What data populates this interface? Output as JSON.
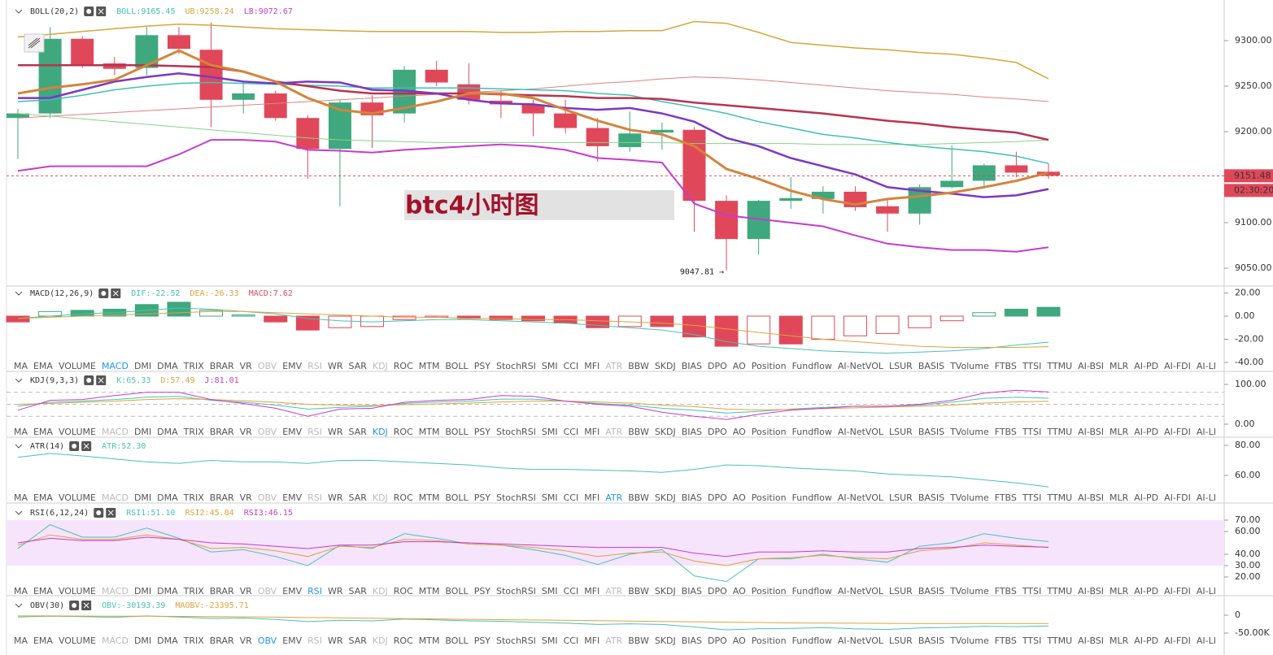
{
  "chart_data": [
    {
      "type": "candlestick",
      "title": "BOLL(20,2)",
      "open": [
        9215,
        9220,
        9302,
        9275,
        9270,
        9306,
        9290,
        9235,
        9242,
        9215,
        9181,
        9232,
        9220,
        9268,
        9252,
        9234,
        9230,
        9220,
        9204,
        9183,
        9199,
        9202,
        9124,
        9082,
        9124,
        9126,
        9134,
        9118,
        9110,
        9139,
        9146,
        9163,
        9156
      ],
      "high": [
        9225,
        9315,
        9305,
        9282,
        9315,
        9315,
        9320,
        9255,
        9245,
        9218,
        9235,
        9240,
        9272,
        9278,
        9275,
        9245,
        9235,
        9235,
        9215,
        9222,
        9210,
        9205,
        9130,
        9125,
        9150,
        9140,
        9140,
        9125,
        9142,
        9185,
        9165,
        9178,
        9165
      ],
      "low": [
        9170,
        9215,
        9270,
        9262,
        9262,
        9285,
        9205,
        9220,
        9212,
        9148,
        9118,
        9182,
        9210,
        9250,
        9230,
        9215,
        9195,
        9198,
        9167,
        9178,
        9180,
        9090,
        9047.81,
        9065,
        9115,
        9110,
        9113,
        9090,
        9098,
        9138,
        9140,
        9150,
        9148
      ],
      "close": [
        9220,
        9302,
        9273,
        9269,
        9306,
        9291,
        9235,
        9242,
        9215,
        9181,
        9232,
        9218,
        9268,
        9254,
        9235,
        9230,
        9220,
        9204,
        9184,
        9198,
        9202,
        9124,
        9082,
        9124,
        9127,
        9134,
        9117,
        9110,
        9139,
        9146,
        9163,
        9155,
        9151.48
      ],
      "up_color": "#3fa87e",
      "down_color": "#e0485a",
      "series": [
        {
          "color": "#e08080",
          "width": 1,
          "values": [
            9215,
            9217,
            9219,
            9221,
            9223,
            9225,
            9227,
            9229,
            9231,
            9233,
            9235,
            9237,
            9239,
            9241,
            9243,
            9245,
            9247,
            9250,
            9253,
            9255,
            9258,
            9260,
            9259,
            9257,
            9254,
            9251,
            9248,
            9245,
            9243,
            9241,
            9238,
            9236,
            9233
          ]
        },
        {
          "color": "#86d486",
          "width": 1,
          "values": [
            9220,
            9217,
            9214,
            9211,
            9208,
            9205,
            9202,
            9199,
            9196,
            9193,
            9191,
            9190,
            9189,
            9188,
            9188,
            9188,
            9188,
            9188,
            9188,
            9188,
            9188,
            9187,
            9187,
            9187,
            9187,
            9186,
            9186,
            9186,
            9186,
            9187,
            9188,
            9189,
            9191
          ]
        },
        {
          "name": "BOLL:9165.45",
          "color": "#3cc2b0",
          "width": 1.5,
          "values": [
            9233,
            9235,
            9240,
            9246,
            9250,
            9253,
            9254,
            9253,
            9252,
            9251,
            9250,
            9248,
            9248,
            9248,
            9248,
            9247,
            9246,
            9245,
            9242,
            9240,
            9233,
            9227,
            9220,
            9211,
            9204,
            9197,
            9193,
            9188,
            9184,
            9181,
            9178,
            9173,
            9165
          ]
        },
        {
          "name": "UB:9258.24",
          "color": "#d4a838",
          "width": 1.5,
          "values": [
            9304,
            9307,
            9310,
            9313,
            9316,
            9318,
            9317,
            9315,
            9313,
            9312,
            9311,
            9310,
            9310,
            9310,
            9310,
            9309,
            9309,
            9310,
            9310,
            9311,
            9311,
            9321,
            9319,
            9309,
            9298,
            9295,
            9292,
            9290,
            9287,
            9285,
            9281,
            9276,
            9258
          ]
        },
        {
          "name": "LB:9072.67",
          "color": "#c63ad0",
          "width": 2,
          "values": [
            9157,
            9162,
            9162,
            9162,
            9162,
            9175,
            9191,
            9191,
            9189,
            9180,
            9179,
            9177,
            9180,
            9182,
            9184,
            9186,
            9184,
            9180,
            9171,
            9169,
            9166,
            9121,
            9108,
            9104,
            9100,
            9096,
            9086,
            9077,
            9073,
            9070,
            9070,
            9068,
            9073
          ]
        },
        {
          "color": "#b73450",
          "width": 2.5,
          "values": [
            9273,
            9273,
            9273,
            9273,
            9273,
            9272,
            9271,
            9266,
            9255,
            9250,
            9245,
            9242,
            9242,
            9242,
            9242,
            9241,
            9240,
            9239,
            9237,
            9237,
            9236,
            9232,
            9229,
            9226,
            9223,
            9220,
            9216,
            9212,
            9209,
            9205,
            9202,
            9199,
            9191
          ]
        },
        {
          "color": "#7b38c4",
          "width": 2.5,
          "values": [
            9237,
            9237,
            9246,
            9255,
            9260,
            9264,
            9260,
            9255,
            9253,
            9255,
            9254,
            9246,
            9245,
            9242,
            9235,
            9231,
            9230,
            9226,
            9224,
            9226,
            9220,
            9211,
            9193,
            9184,
            9171,
            9162,
            9153,
            9139,
            9135,
            9132,
            9128,
            9130,
            9137
          ]
        },
        {
          "color": "#d4843a",
          "width": 3,
          "values": [
            9242,
            9248,
            9252,
            9257,
            9273,
            9289,
            9273,
            9266,
            9255,
            9237,
            9224,
            9220,
            9226,
            9233,
            9242,
            9242,
            9237,
            9224,
            9212,
            9202,
            9197,
            9184,
            9159,
            9148,
            9135,
            9126,
            9120,
            9126,
            9129,
            9133,
            9139,
            9146,
            9155
          ]
        }
      ],
      "ylim": [
        9032.14,
        9344.64
      ],
      "yticks": [
        {
          "value": 9050,
          "label": "9050.00"
        },
        {
          "value": 9100,
          "label": "9100.00"
        },
        {
          "value": 9150,
          "label": "9150.00"
        },
        {
          "value": 9200,
          "label": "9200.00"
        },
        {
          "value": 9250,
          "label": "9250.00"
        },
        {
          "value": 9300,
          "label": "9300.00"
        }
      ],
      "last_price_label": "9151.48",
      "countdown": "02:30:20",
      "annotation": "9047.81 →",
      "watermark": "btc4小时图"
    },
    {
      "type": "line",
      "title": "MACD(12,26,9)",
      "active_tab": 3,
      "series": [
        {
          "name": "DIF:-22.52",
          "color": "#47c3b6",
          "type": "line",
          "values": [
            -2,
            0,
            2,
            3,
            5,
            7,
            6,
            4,
            2,
            -2,
            -4,
            -5,
            -4,
            -3,
            -3,
            -4,
            -5,
            -6,
            -8,
            -10,
            -12,
            -16,
            -22,
            -26,
            -28,
            -30,
            -31,
            -32,
            -31,
            -30,
            -28,
            -25,
            -22.52
          ]
        },
        {
          "name": "DEA:-26.33",
          "color": "#e0a23a",
          "type": "line",
          "values": [
            -2,
            -1,
            0,
            1,
            2,
            3,
            4,
            4,
            3,
            2,
            1,
            0,
            -1,
            -1,
            -2,
            -2,
            -3,
            -3,
            -4,
            -5,
            -6,
            -8,
            -11,
            -14,
            -17,
            -20,
            -22,
            -24,
            -26,
            -27,
            -27,
            -27,
            -26.33
          ]
        },
        {
          "name": "MACD:7.62",
          "color": "#e0485a",
          "up_color": "#3fa87e",
          "type": "bar",
          "values": [
            -5,
            4,
            5,
            6,
            10,
            12,
            5,
            1,
            -5,
            -12,
            -10,
            -9,
            -3,
            -1,
            -2,
            -3,
            -4,
            -6,
            -10,
            -9,
            -9,
            -18,
            -26,
            -24,
            -24,
            -20,
            -17,
            -15,
            -10,
            -4,
            3,
            6,
            7.62
          ]
        }
      ],
      "ylim": [
        -40.7,
        23.86
      ],
      "yticks": [
        {
          "value": -40,
          "label": "-40.00"
        },
        {
          "value": -20,
          "label": "-20.00"
        },
        {
          "value": 0,
          "label": "0.00"
        },
        {
          "value": 20,
          "label": "20.00"
        }
      ]
    },
    {
      "type": "line",
      "title": "KDJ(9,3,3)",
      "active_tab": 14,
      "hlines": [
        20,
        50,
        80
      ],
      "series": [
        {
          "name": "K:65.33",
          "color": "#47c3b6",
          "type": "line",
          "values": [
            45,
            55,
            58,
            62,
            68,
            70,
            60,
            55,
            48,
            38,
            42,
            45,
            52,
            56,
            58,
            63,
            63,
            58,
            52,
            48,
            40,
            35,
            28,
            32,
            38,
            42,
            45,
            45,
            48,
            55,
            65,
            68,
            65.33
          ]
        },
        {
          "name": "D:57.49",
          "color": "#e0a23a",
          "type": "line",
          "values": [
            50,
            52,
            55,
            58,
            62,
            64,
            62,
            59,
            55,
            50,
            48,
            47,
            49,
            51,
            53,
            56,
            58,
            58,
            56,
            53,
            48,
            44,
            38,
            36,
            37,
            39,
            41,
            43,
            45,
            48,
            53,
            56,
            57.49
          ]
        },
        {
          "name": "J:81.01",
          "color": "#c63ad0",
          "type": "line",
          "values": [
            35,
            60,
            62,
            72,
            80,
            80,
            62,
            52,
            40,
            20,
            38,
            40,
            55,
            60,
            62,
            72,
            70,
            58,
            50,
            45,
            30,
            20,
            12,
            25,
            35,
            40,
            45,
            45,
            50,
            60,
            78,
            85,
            81.01
          ]
        }
      ],
      "ylim": [
        -10.2,
        126.5
      ],
      "yticks": [
        {
          "value": 0,
          "label": "0.00"
        },
        {
          "value": 100,
          "label": "100.00"
        }
      ]
    },
    {
      "type": "line",
      "title": "ATR(14)",
      "active_tab": 23,
      "series": [
        {
          "name": "ATR:52.30",
          "color": "#47c3b6",
          "type": "line",
          "values": [
            72,
            74.6,
            73,
            71,
            69,
            68,
            70,
            69,
            69,
            68,
            70,
            70,
            69,
            68,
            67,
            65,
            64,
            64,
            63.5,
            63,
            62,
            64,
            67,
            66.5,
            65,
            64,
            63,
            61,
            60,
            59,
            57,
            55,
            52.3
          ]
        }
      ],
      "ylim": [
        48.1,
        83.8
      ],
      "yticks": [
        {
          "value": 60,
          "label": "60.00"
        },
        {
          "value": 80,
          "label": "80.00"
        }
      ]
    },
    {
      "type": "line",
      "title": "RSI(6,12,24)",
      "active_tab": 11,
      "band": [
        30,
        70
      ],
      "band_color": "#f5e4fb",
      "series": [
        {
          "name": "RSI1:51.10",
          "color": "#47c3b6",
          "type": "line",
          "values": [
            45,
            66,
            55,
            55,
            63,
            54,
            42,
            44,
            38,
            30,
            48,
            45,
            58,
            54,
            49,
            48,
            44,
            39,
            31,
            40,
            44,
            21,
            16,
            36,
            36,
            40,
            36,
            33,
            47,
            50,
            58,
            54,
            51.1
          ]
        },
        {
          "name": "RSI2:45.84",
          "color": "#e0a23a",
          "type": "line",
          "values": [
            48,
            57,
            53,
            53,
            57,
            53,
            45,
            46,
            43,
            38,
            47,
            46,
            53,
            52,
            49,
            48,
            46,
            43,
            38,
            41,
            42,
            34,
            30,
            36,
            37,
            39,
            37,
            36,
            43,
            45,
            50,
            48,
            45.84
          ]
        },
        {
          "name": "RSI3:46.15",
          "color": "#c63ad0",
          "type": "line",
          "values": [
            50,
            54,
            52,
            52,
            55,
            53,
            50,
            49,
            47,
            45,
            48,
            48,
            51,
            51,
            50,
            49,
            48,
            47,
            46,
            46,
            46,
            41,
            38,
            42,
            42,
            43,
            42,
            42,
            45,
            46,
            48,
            47,
            46.15
          ]
        }
      ],
      "ylim": [
        11.4,
        82.9
      ],
      "yticks": [
        {
          "value": 20,
          "label": "20.00"
        },
        {
          "value": 30,
          "label": "30.00"
        },
        {
          "value": 40,
          "label": "40.00"
        },
        {
          "value": 60,
          "label": "60.00"
        },
        {
          "value": 70,
          "label": "70.00"
        }
      ]
    },
    {
      "type": "line",
      "title": "OBV(30)",
      "active_tab": 9,
      "series": [
        {
          "name": "OBV:-30193.39",
          "color": "#47c3b6",
          "type": "line",
          "values": [
            -5000,
            -3000,
            -4000,
            -6000,
            -2000,
            -5000,
            -9000,
            -8000,
            -12000,
            -18000,
            -14000,
            -16000,
            -11000,
            -13000,
            -16000,
            -17000,
            -20000,
            -22000,
            -26000,
            -24000,
            -26000,
            -33000,
            -41000,
            -38000,
            -37000,
            -35000,
            -38000,
            -40000,
            -36000,
            -34000,
            -31000,
            -32000,
            -30193.39
          ]
        },
        {
          "name": "MAOBV:-23395.71",
          "color": "#e0a23a",
          "type": "line",
          "values": [
            -2000,
            -2000,
            -2500,
            -3000,
            -3000,
            -3500,
            -4000,
            -4500,
            -5500,
            -6500,
            -7500,
            -8500,
            -9500,
            -10500,
            -11500,
            -12500,
            -13500,
            -14500,
            -15500,
            -16500,
            -17500,
            -18500,
            -19500,
            -20500,
            -21500,
            -22000,
            -22500,
            -23000,
            -23200,
            -23300,
            -23300,
            -23400,
            -23395.71
          ]
        }
      ],
      "ylim": [
        -61364,
        47727
      ],
      "yticks": [
        {
          "value": -50000,
          "label": "-50.00K"
        },
        0
      ]
    }
  ],
  "indicator_tabs": [
    "MA",
    "EMA",
    "VOLUME",
    "MACD",
    "DMI",
    "DMA",
    "TRIX",
    "BRAR",
    "VR",
    "OBV",
    "EMV",
    "RSI",
    "WR",
    "SAR",
    "KDJ",
    "ROC",
    "MTM",
    "BOLL",
    "PSY",
    "StochRSI",
    "SMI",
    "CCI",
    "MFI",
    "ATR",
    "BBW",
    "SKDJ",
    "BIAS",
    "DPO",
    "AO",
    "Position",
    "Fundflow",
    "AI-NetVOL",
    "LSUR",
    "BASIS",
    "TVolume",
    "FTBS",
    "TTSI",
    "TTMU",
    "AI-BSI",
    "MLR",
    "AI-PD",
    "AI-FDI",
    "AI-LI"
  ],
  "dim_tabs": [
    3,
    9,
    11,
    14,
    23
  ]
}
